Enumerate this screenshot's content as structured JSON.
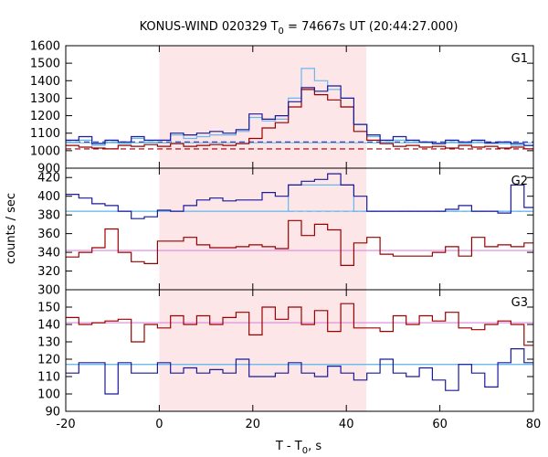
{
  "chart_data": {
    "type": "line",
    "title": {
      "main": "KONUS-WIND 020329 T",
      "sub": "0",
      "rest": " = 74667s UT (20:44:27.000)"
    },
    "xlabel": {
      "main": "T - T",
      "sub": "0",
      "rest": ", s"
    },
    "ylabel": "counts / sec",
    "xlim": [
      -20,
      80
    ],
    "x_ticks": [
      "-20",
      "0",
      "20",
      "40",
      "60",
      "80"
    ],
    "shaded_interval": [
      0,
      44.3
    ],
    "grid": false,
    "colors": {
      "dark_red": "#990000",
      "navy": "#1a1a99",
      "light_blue": "#66b8ee",
      "pink": "#dd88dd",
      "shade": "#fde6e8"
    },
    "panels": [
      {
        "label": "G1",
        "ylim": [
          900,
          1600
        ],
        "y_ticks": [
          "900",
          "1000",
          "1100",
          "1200",
          "1300",
          "1400",
          "1500",
          "1600"
        ],
        "bin_edges": [
          -20,
          -17.2,
          -14.4,
          -11.6,
          -8.8,
          -6,
          -3.2,
          -0.4,
          2.4,
          5.2,
          8,
          10.8,
          13.6,
          16.4,
          19.2,
          22,
          24.8,
          27.6,
          30.4,
          33.2,
          36,
          38.8,
          41.6,
          44.4,
          47.2,
          50,
          52.8,
          55.6,
          58.4,
          61.2,
          64,
          66.8,
          69.6,
          72.4,
          75.2,
          78,
          80
        ],
        "series": [
          {
            "color": "dark_red",
            "values": [
              1030,
              1020,
              1015,
              1010,
              1030,
              1025,
              1035,
              1025,
              1040,
              1025,
              1030,
              1035,
              1030,
              1040,
              1070,
              1130,
              1160,
              1250,
              1350,
              1320,
              1290,
              1250,
              1110,
              1060,
              1040,
              1025,
              1030,
              1020,
              1025,
              1015,
              1030,
              1020,
              1025,
              1015,
              1020,
              1010
            ]
          },
          {
            "color": "navy",
            "values": [
              1060,
              1080,
              1040,
              1060,
              1050,
              1080,
              1060,
              1060,
              1100,
              1090,
              1100,
              1110,
              1100,
              1120,
              1210,
              1180,
              1200,
              1280,
              1360,
              1340,
              1370,
              1300,
              1150,
              1090,
              1060,
              1080,
              1060,
              1050,
              1040,
              1060,
              1050,
              1060,
              1045,
              1050,
              1040,
              1030
            ]
          },
          {
            "color": "light_blue",
            "values": [
              1050,
              1060,
              1030,
              1050,
              1040,
              1070,
              1050,
              1045,
              1090,
              1070,
              1080,
              1090,
              1090,
              1110,
              1190,
              1170,
              1180,
              1300,
              1470,
              1400,
              1350,
              1250,
              1150,
              1080,
              1050,
              1060,
              1050,
              1045,
              1040,
              1050,
              1040,
              1050,
              1040,
              1040,
              1030,
              1030
            ]
          }
        ],
        "baselines": [
          {
            "color": "navy",
            "dash": true,
            "x": [
              -20,
              80
            ],
            "values": [
              1050,
              1050
            ]
          },
          {
            "color": "dark_red",
            "dash": true,
            "x": [
              -20,
              80
            ],
            "values": [
              1010,
              1010
            ]
          },
          {
            "color": "light_blue",
            "dash": false,
            "x": [
              -20,
              80
            ],
            "values": [
              1045,
              1045
            ]
          }
        ]
      },
      {
        "label": "G2",
        "ylim": [
          300,
          430
        ],
        "y_ticks": [
          "300",
          "320",
          "340",
          "360",
          "380",
          "400",
          "420"
        ],
        "bin_edges": [
          -20,
          -17.2,
          -14.4,
          -11.6,
          -8.8,
          -6,
          -3.2,
          -0.4,
          2.4,
          5.2,
          8,
          10.8,
          13.6,
          16.4,
          19.2,
          22,
          24.8,
          27.6,
          30.4,
          33.2,
          36,
          38.8,
          41.6,
          44.4,
          47.2,
          50,
          52.8,
          55.6,
          58.4,
          61.2,
          64,
          66.8,
          69.6,
          72.4,
          75.2,
          78,
          80
        ],
        "series": [
          {
            "color": "dark_red",
            "values": [
              335,
              340,
              345,
              365,
              340,
              330,
              328,
              352,
              352,
              356,
              348,
              345,
              345,
              346,
              348,
              346,
              344,
              374,
              358,
              370,
              364,
              326,
              350,
              356,
              338,
              336,
              336,
              336,
              340,
              346,
              336,
              356,
              346,
              348,
              346,
              350
            ]
          },
          {
            "color": "navy",
            "values": [
              402,
              398,
              392,
              390,
              384,
              376,
              378,
              385,
              384,
              390,
              396,
              398,
              395,
              396,
              396,
              404,
              400,
              412,
              416,
              418,
              424,
              412,
              400,
              384,
              384,
              384,
              384,
              384,
              384,
              386,
              390,
              384,
              384,
              382,
              412,
              388
            ]
          },
          {
            "color": "light_blue",
            "values": [
              384,
              384,
              384,
              384,
              384,
              384,
              384,
              384,
              384,
              384,
              384,
              384,
              384,
              384,
              384,
              384,
              384,
              412,
              412,
              412,
              412,
              412,
              384,
              384,
              384,
              384,
              384,
              384,
              384,
              384,
              384,
              384,
              384,
              384,
              384,
              384
            ]
          }
        ],
        "baselines": [
          {
            "color": "navy",
            "dash": true,
            "x": [
              27.6,
              80
            ],
            "values": [
              384,
              384
            ]
          },
          {
            "color": "light_blue",
            "dash": false,
            "x": [
              -20,
              80
            ],
            "values": [
              384,
              384
            ]
          },
          {
            "color": "pink",
            "dash": false,
            "x": [
              -20,
              80
            ],
            "values": [
              342,
              342
            ]
          }
        ]
      },
      {
        "label": "G3",
        "ylim": [
          90,
          160
        ],
        "y_ticks": [
          "90",
          "100",
          "110",
          "120",
          "130",
          "140",
          "150"
        ],
        "bin_edges": [
          -20,
          -17.2,
          -14.4,
          -11.6,
          -8.8,
          -6,
          -3.2,
          -0.4,
          2.4,
          5.2,
          8,
          10.8,
          13.6,
          16.4,
          19.2,
          22,
          24.8,
          27.6,
          30.4,
          33.2,
          36,
          38.8,
          41.6,
          44.4,
          47.2,
          50,
          52.8,
          55.6,
          58.4,
          61.2,
          64,
          66.8,
          69.6,
          72.4,
          75.2,
          78,
          80
        ],
        "series": [
          {
            "color": "dark_red",
            "values": [
              144,
              140,
              141,
              142,
              143,
              130,
              140,
              138,
              145,
              140,
              145,
              140,
              144,
              147,
              134,
              150,
              143,
              150,
              140,
              148,
              136,
              152,
              138,
              138,
              136,
              145,
              140,
              145,
              142,
              147,
              138,
              137,
              140,
              142,
              140,
              128
            ]
          },
          {
            "color": "navy",
            "values": [
              112,
              118,
              118,
              100,
              118,
              112,
              112,
              118,
              112,
              115,
              112,
              114,
              112,
              120,
              110,
              110,
              112,
              118,
              112,
              110,
              116,
              112,
              108,
              112,
              120,
              112,
              110,
              115,
              108,
              102,
              117,
              112,
              104,
              118,
              126,
              118
            ]
          },
          {
            "color": "light_blue",
            "values": [
              117,
              117,
              117,
              117,
              117,
              117,
              117,
              117,
              117,
              117,
              117,
              117,
              117,
              117,
              117,
              117,
              117,
              117,
              117,
              117,
              117,
              117,
              117,
              117,
              117,
              117,
              117,
              117,
              117,
              117,
              117,
              117,
              117,
              117,
              117,
              117
            ]
          }
        ],
        "baselines": [
          {
            "color": "pink",
            "dash": false,
            "x": [
              -20,
              80
            ],
            "values": [
              141,
              141
            ]
          },
          {
            "color": "light_blue",
            "dash": false,
            "x": [
              -20,
              80
            ],
            "values": [
              117,
              117
            ]
          }
        ]
      }
    ]
  }
}
